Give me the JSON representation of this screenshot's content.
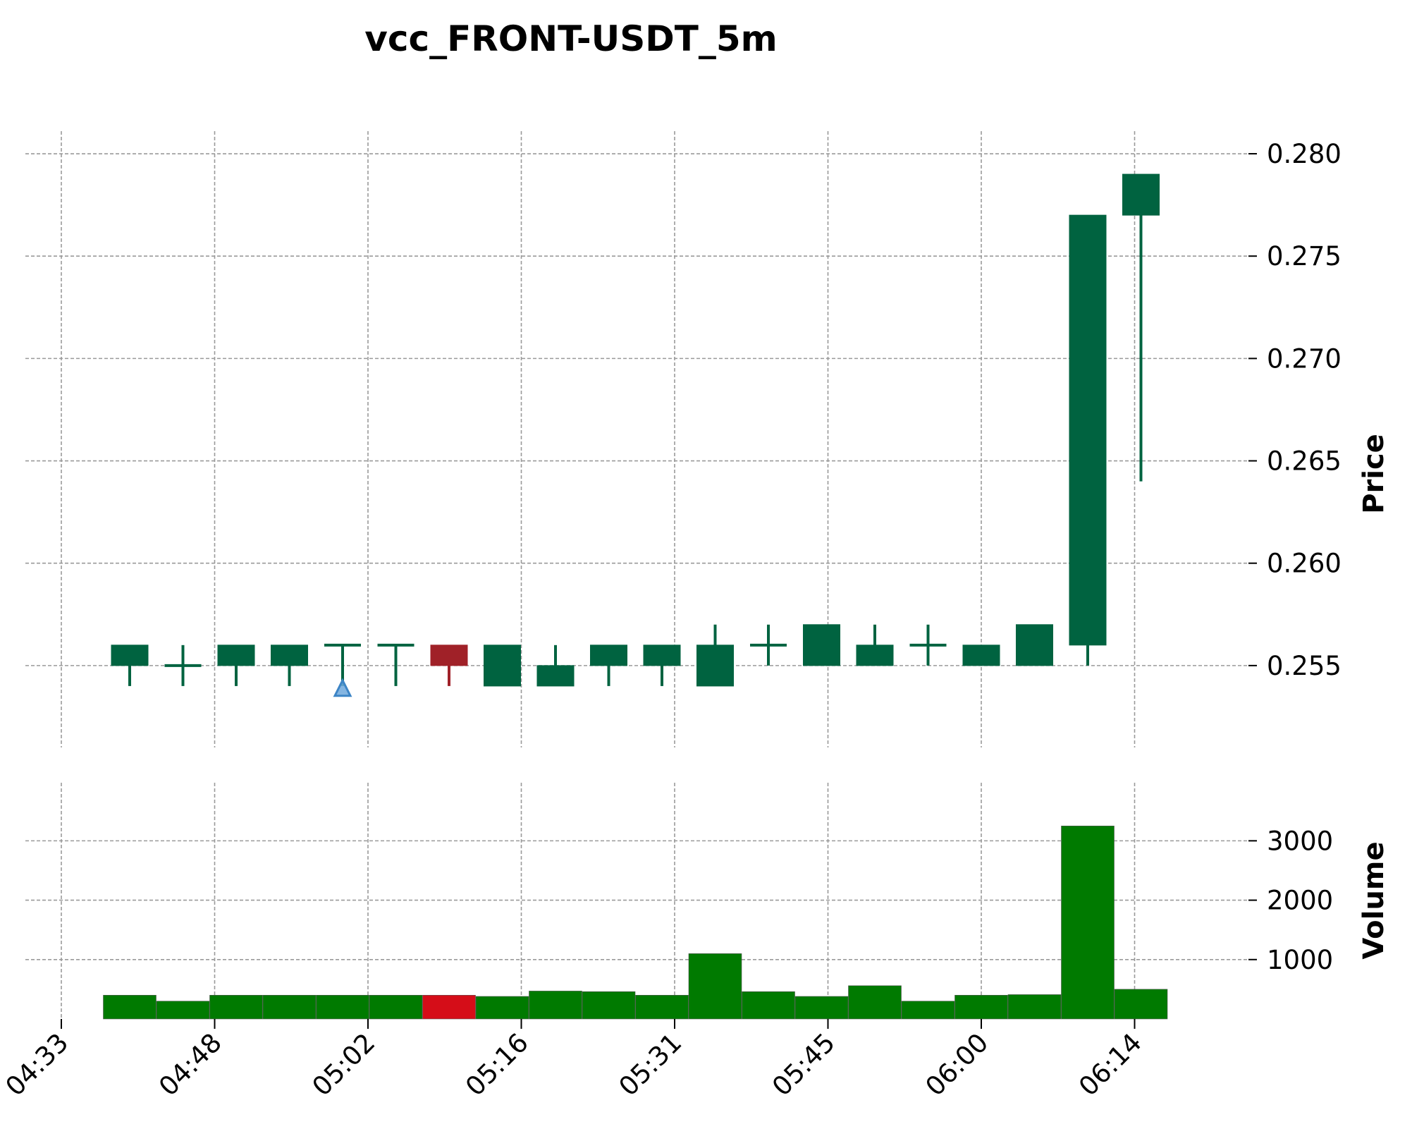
{
  "chart_data": {
    "type": "candlestick",
    "title": "vcc_FRONT-USDT_5m",
    "price_label": "Price",
    "volume_label": "Volume",
    "x_tick_labels": [
      "04:33",
      "04:48",
      "05:02",
      "05:16",
      "05:31",
      "05:45",
      "06:00",
      "06:14"
    ],
    "price_ylim": [
      0.251,
      0.281
    ],
    "price_ticks": [
      0.255,
      0.26,
      0.265,
      0.27,
      0.275,
      0.28
    ],
    "price_tick_labels": [
      "0.255",
      "0.260",
      "0.265",
      "0.270",
      "0.275",
      "0.280"
    ],
    "volume_ylim": [
      0,
      3800
    ],
    "volume_ticks": [
      1000,
      2000,
      3000
    ],
    "volume_tick_labels": [
      "1000",
      "2000",
      "3000"
    ],
    "colors": {
      "up": "#006340",
      "down": "#a02128",
      "vol_up": "#007a00",
      "vol_down": "#d50d18",
      "marker": "#6fa8dc",
      "marker_edge": "#3d85c6"
    },
    "candles": [
      {
        "open": 0.255,
        "high": 0.256,
        "low": 0.254,
        "close": 0.256,
        "volume": 400
      },
      {
        "open": 0.255,
        "high": 0.256,
        "low": 0.254,
        "close": 0.255,
        "volume": 300
      },
      {
        "open": 0.255,
        "high": 0.256,
        "low": 0.254,
        "close": 0.256,
        "volume": 400
      },
      {
        "open": 0.255,
        "high": 0.256,
        "low": 0.254,
        "close": 0.256,
        "volume": 400
      },
      {
        "open": 0.256,
        "high": 0.256,
        "low": 0.254,
        "close": 0.256,
        "volume": 400
      },
      {
        "open": 0.256,
        "high": 0.256,
        "low": 0.254,
        "close": 0.256,
        "volume": 400
      },
      {
        "open": 0.256,
        "high": 0.256,
        "low": 0.254,
        "close": 0.255,
        "volume": 400
      },
      {
        "open": 0.254,
        "high": 0.256,
        "low": 0.254,
        "close": 0.256,
        "volume": 380
      },
      {
        "open": 0.254,
        "high": 0.256,
        "low": 0.254,
        "close": 0.255,
        "volume": 470
      },
      {
        "open": 0.255,
        "high": 0.256,
        "low": 0.254,
        "close": 0.256,
        "volume": 460
      },
      {
        "open": 0.255,
        "high": 0.256,
        "low": 0.254,
        "close": 0.256,
        "volume": 400
      },
      {
        "open": 0.254,
        "high": 0.257,
        "low": 0.254,
        "close": 0.256,
        "volume": 1100
      },
      {
        "open": 0.256,
        "high": 0.257,
        "low": 0.255,
        "close": 0.256,
        "volume": 460
      },
      {
        "open": 0.255,
        "high": 0.257,
        "low": 0.255,
        "close": 0.257,
        "volume": 380
      },
      {
        "open": 0.255,
        "high": 0.257,
        "low": 0.255,
        "close": 0.256,
        "volume": 560
      },
      {
        "open": 0.256,
        "high": 0.257,
        "low": 0.255,
        "close": 0.256,
        "volume": 300
      },
      {
        "open": 0.255,
        "high": 0.256,
        "low": 0.255,
        "close": 0.256,
        "volume": 400
      },
      {
        "open": 0.255,
        "high": 0.257,
        "low": 0.255,
        "close": 0.257,
        "volume": 410
      },
      {
        "open": 0.256,
        "high": 0.277,
        "low": 0.255,
        "close": 0.277,
        "volume": 3250
      },
      {
        "open": 0.277,
        "high": 0.279,
        "low": 0.264,
        "close": 0.279,
        "volume": 500
      }
    ],
    "markers": [
      {
        "index": 4,
        "price": 0.2539,
        "shape": "triangle-up"
      }
    ],
    "grid": true
  }
}
